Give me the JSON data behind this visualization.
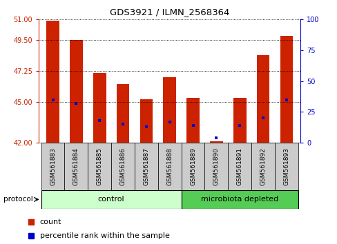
{
  "title": "GDS3921 / ILMN_2568364",
  "samples": [
    "GSM561883",
    "GSM561884",
    "GSM561885",
    "GSM561886",
    "GSM561887",
    "GSM561888",
    "GSM561889",
    "GSM561890",
    "GSM561891",
    "GSM561892",
    "GSM561893"
  ],
  "counts": [
    50.9,
    49.5,
    47.1,
    46.3,
    45.2,
    46.8,
    45.3,
    42.1,
    45.3,
    48.4,
    49.8
  ],
  "percentile_ranks": [
    35,
    32,
    18,
    15,
    13,
    17,
    14,
    4,
    14,
    20,
    35
  ],
  "ylim_left": [
    42,
    51
  ],
  "ylim_right": [
    0,
    100
  ],
  "yticks_left": [
    42,
    45,
    47.25,
    49.5,
    51
  ],
  "yticks_right": [
    0,
    25,
    50,
    75,
    100
  ],
  "bar_color": "#cc2200",
  "dot_color": "#0000cc",
  "control_color": "#ccffcc",
  "depleted_color": "#55cc55",
  "control_label": "control",
  "depleted_label": "microbiota depleted",
  "legend_count_label": "count",
  "legend_pct_label": "percentile rank within the sample",
  "protocol_label": "protocol",
  "bar_bottom": 42,
  "bar_width": 0.55,
  "control_count": 6,
  "depleted_count": 5,
  "tick_gray": "#cccccc",
  "tick_label_fontsize": 6.5,
  "title_fontsize": 9.5
}
